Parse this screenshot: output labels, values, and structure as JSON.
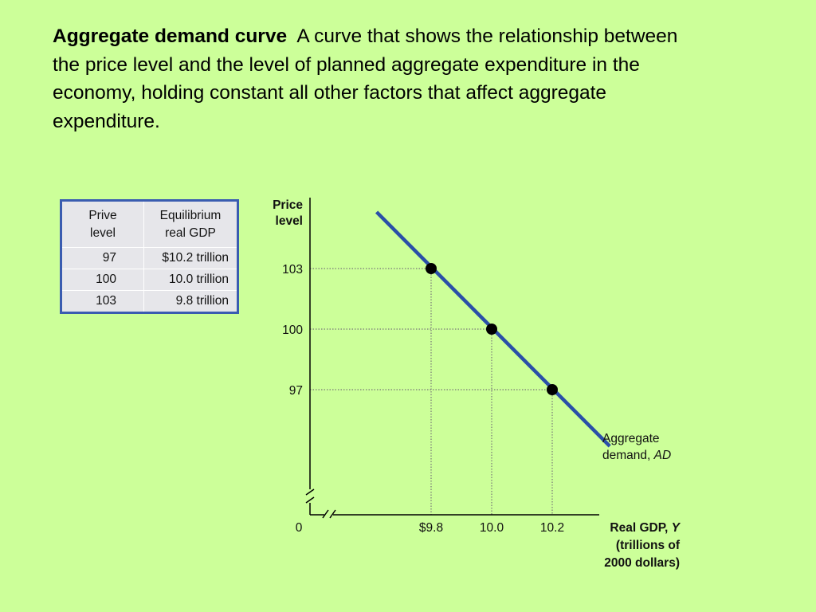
{
  "definition": {
    "term": "Aggregate demand curve",
    "text": "A curve that shows the relationship between the price level and the level of planned aggregate expenditure in the economy, holding constant all other factors that affect aggregate expenditure."
  },
  "table": {
    "headers": [
      "Prive level",
      "Equilibrium real GDP"
    ],
    "rows": [
      [
        "97",
        "$10.2 trillion"
      ],
      [
        "100",
        "10.0 trillion"
      ],
      [
        "103",
        "9.8 trillion"
      ]
    ],
    "colors": {
      "border": "#3a5cb0",
      "fill": "#e6e6ea"
    }
  },
  "chart_data": {
    "type": "line",
    "ylabel": "Price level",
    "xlabel_lines": [
      "Real GDP, Y",
      "(trillions of",
      "2000 dollars)"
    ],
    "origin_label": "0",
    "x_ticks": [
      {
        "value": 9.8,
        "label": "$9.8"
      },
      {
        "value": 10.0,
        "label": "10.0"
      },
      {
        "value": 10.2,
        "label": "10.2"
      }
    ],
    "y_ticks": [
      {
        "value": 97,
        "label": "97"
      },
      {
        "value": 100,
        "label": "100"
      },
      {
        "value": 103,
        "label": "103"
      }
    ],
    "series": [
      {
        "name": "Aggregate demand, AD",
        "name_lines": [
          "Aggregate",
          "demand, AD"
        ],
        "line": {
          "x_start": 9.62,
          "y_start": 105.8,
          "x_end": 10.39,
          "y_end": 94.2
        },
        "points": [
          {
            "x": 9.8,
            "y": 103
          },
          {
            "x": 10.0,
            "y": 100
          },
          {
            "x": 10.2,
            "y": 97
          }
        ]
      }
    ],
    "axis_break": true,
    "grid": false,
    "guides": "dotted",
    "colors": {
      "curve": "#2a4fa8",
      "axis": "#000000",
      "points": "#000000"
    }
  }
}
